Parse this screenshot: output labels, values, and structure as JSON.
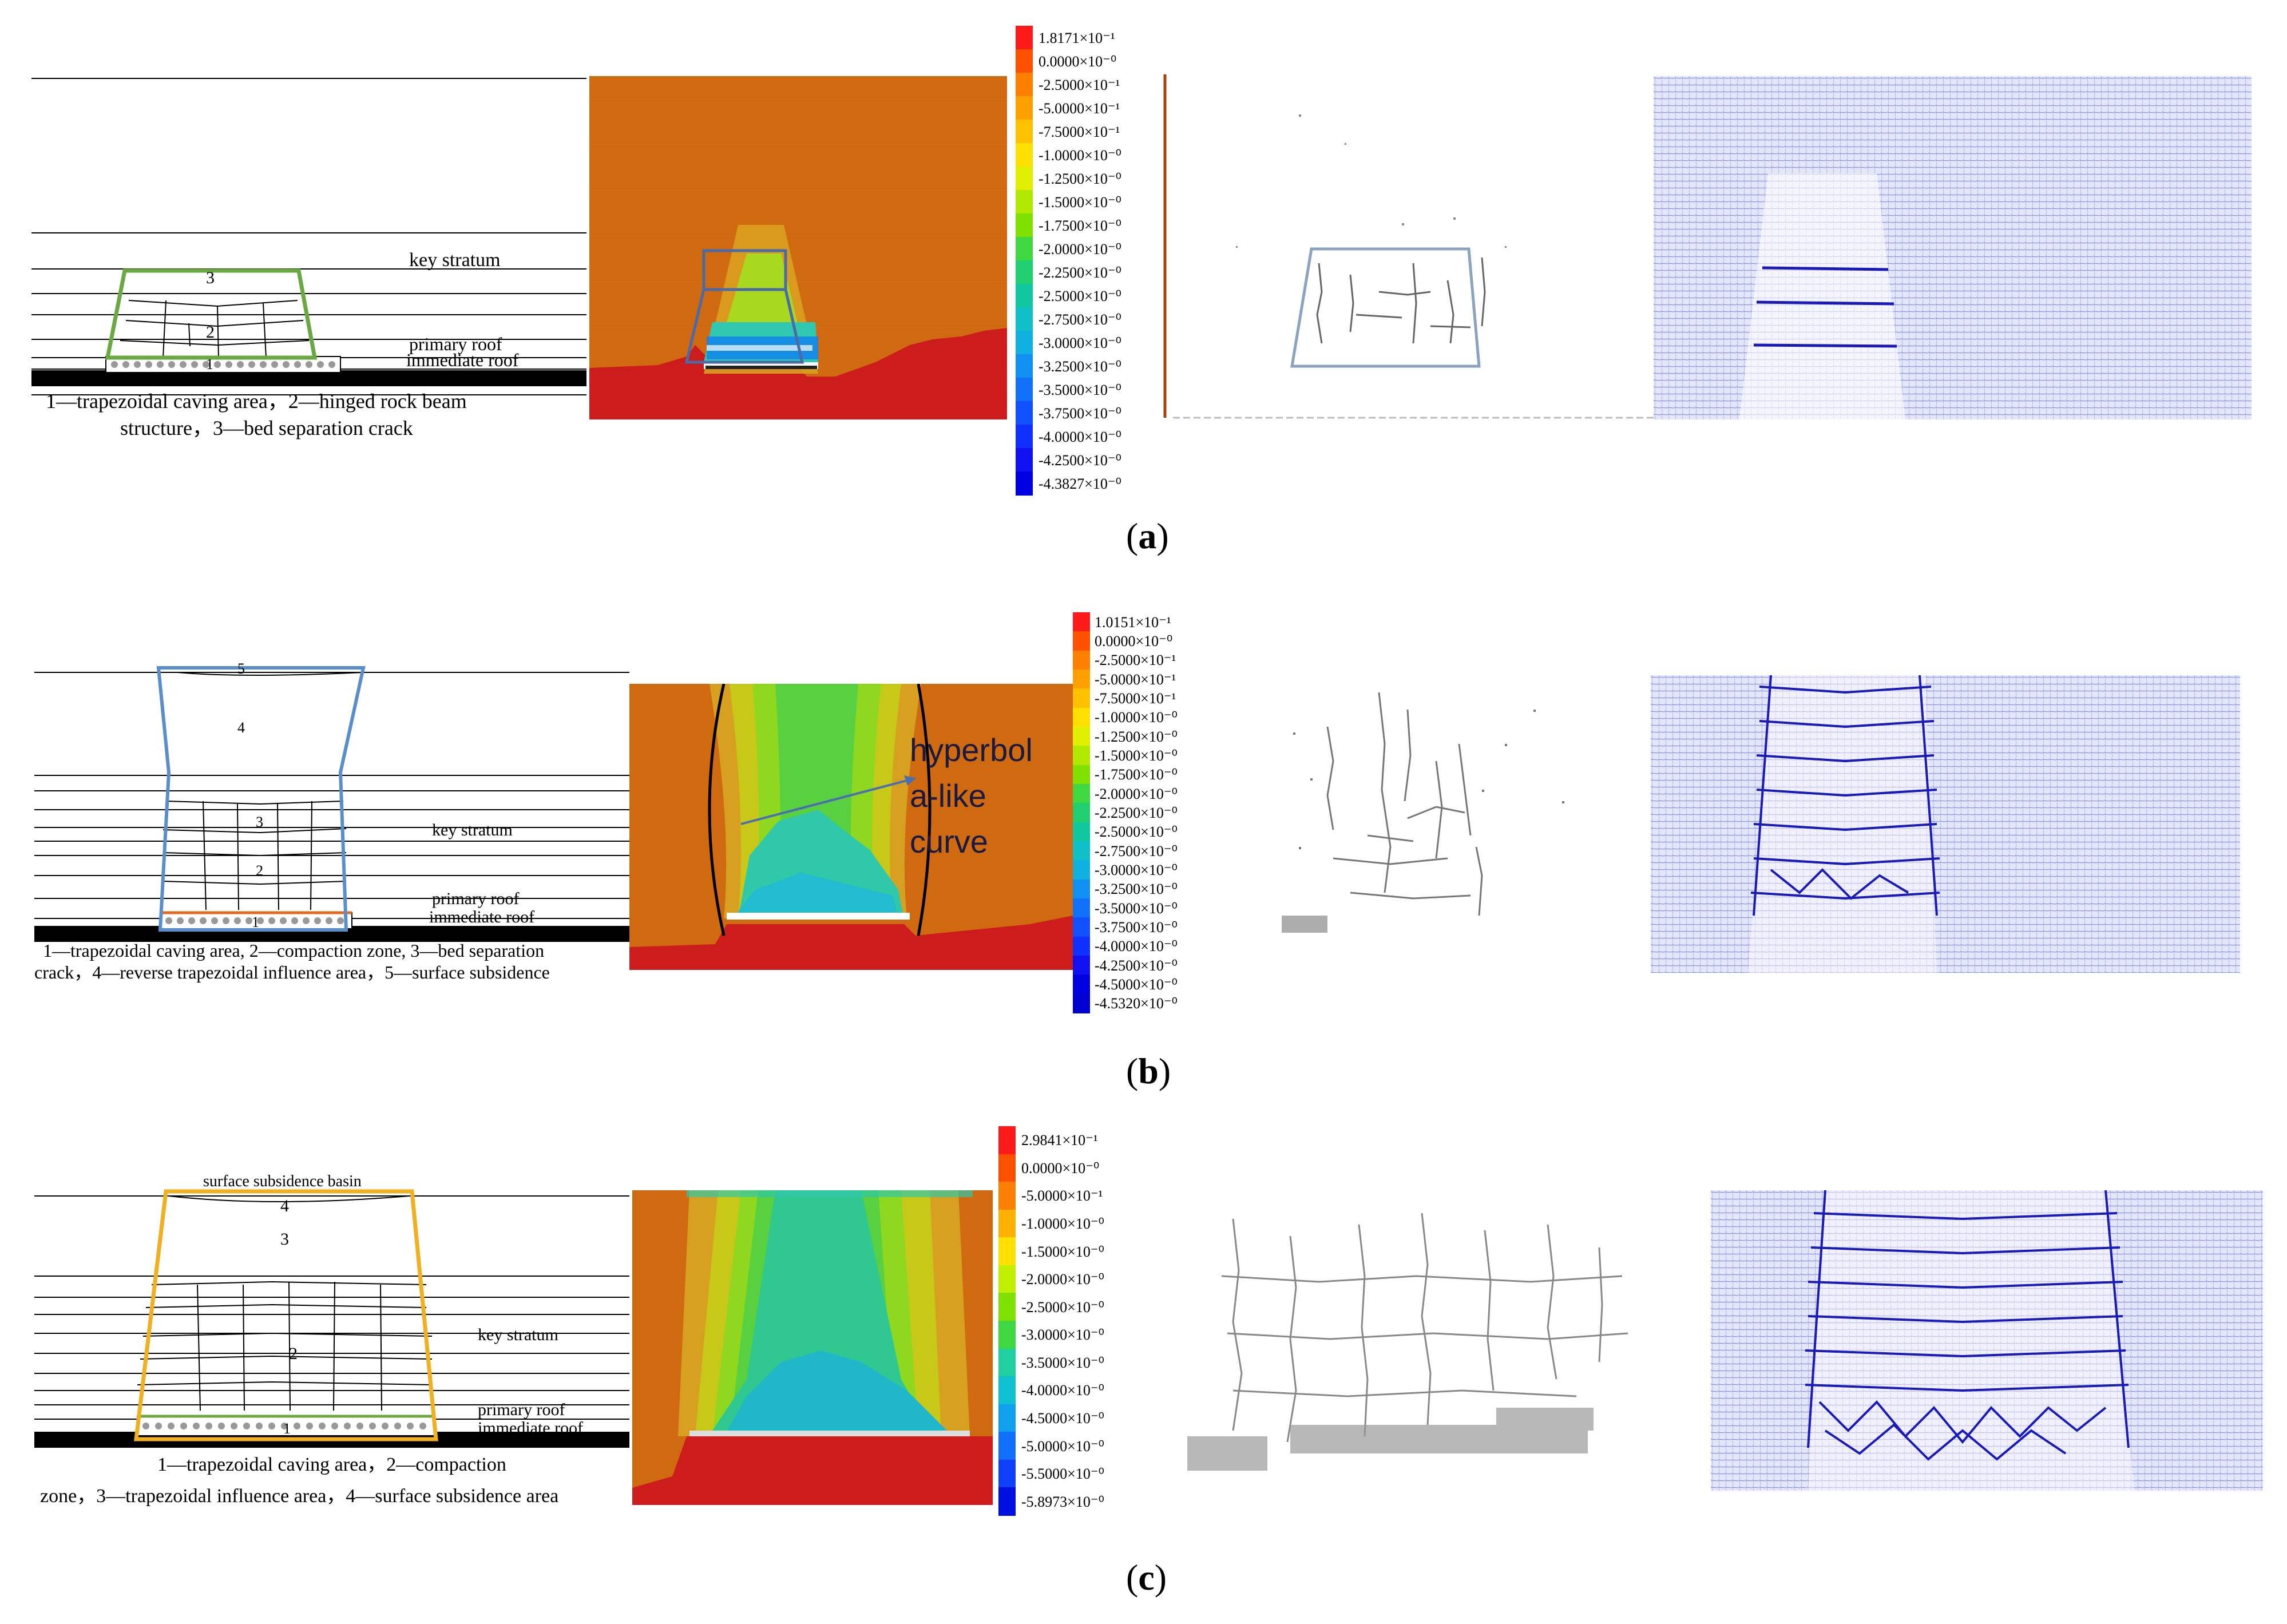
{
  "rows": [
    {
      "id": "a",
      "panel_label": "a",
      "schematic": {
        "labels": [
          "key stratum",
          "primary roof",
          "immediate roof"
        ],
        "zone_numbers": [
          "3",
          "2",
          "1"
        ],
        "caption_line1": "1—trapezoidal caving area，2—hinged rock beam",
        "caption_line2": "structure，3—bed separation crack"
      },
      "colorbar": [
        "1.8171×10⁻¹",
        "0.0000×10⁻⁰",
        "-2.5000×10⁻¹",
        "-5.0000×10⁻¹",
        "-7.5000×10⁻¹",
        "-1.0000×10⁻⁰",
        "-1.2500×10⁻⁰",
        "-1.5000×10⁻⁰",
        "-1.7500×10⁻⁰",
        "-2.0000×10⁻⁰",
        "-2.2500×10⁻⁰",
        "-2.5000×10⁻⁰",
        "-2.7500×10⁻⁰",
        "-3.0000×10⁻⁰",
        "-3.2500×10⁻⁰",
        "-3.5000×10⁻⁰",
        "-3.7500×10⁻⁰",
        "-4.0000×10⁻⁰",
        "-4.2500×10⁻⁰",
        "-4.3827×10⁻⁰"
      ],
      "colors": [
        "#ff1a1a",
        "#ff5000",
        "#ff8000",
        "#ffa000",
        "#ffc000",
        "#ffe000",
        "#e0f000",
        "#b0e800",
        "#80e000",
        "#40d840",
        "#20d070",
        "#10c8a0",
        "#10c0c8",
        "#10b0e0",
        "#1090f0",
        "#1070f8",
        "#1050ff",
        "#1030ff",
        "#1010f0",
        "#0000e0"
      ]
    },
    {
      "id": "b",
      "panel_label": "b",
      "schematic": {
        "labels": [
          "key stratum",
          "primary roof",
          "immediate roof"
        ],
        "zone_numbers": [
          "5",
          "4",
          "3",
          "2",
          "1"
        ],
        "caption_line1": "1—trapezoidal caving area, 2—compaction zone, 3—bed separation",
        "caption_line2": "crack，4—reverse trapezoidal influence area，5—surface subsidence"
      },
      "annotation": "hyperbola-like curve",
      "annotation_lines": [
        "hyperbol",
        "a-like",
        "curve"
      ],
      "colorbar": [
        "1.0151×10⁻¹",
        "0.0000×10⁻⁰",
        "-2.5000×10⁻¹",
        "-5.0000×10⁻¹",
        "-7.5000×10⁻¹",
        "-1.0000×10⁻⁰",
        "-1.2500×10⁻⁰",
        "-1.5000×10⁻⁰",
        "-1.7500×10⁻⁰",
        "-2.0000×10⁻⁰",
        "-2.2500×10⁻⁰",
        "-2.5000×10⁻⁰",
        "-2.7500×10⁻⁰",
        "-3.0000×10⁻⁰",
        "-3.2500×10⁻⁰",
        "-3.5000×10⁻⁰",
        "-3.7500×10⁻⁰",
        "-4.0000×10⁻⁰",
        "-4.2500×10⁻⁰",
        "-4.5000×10⁻⁰",
        "-4.5320×10⁻⁰"
      ],
      "colors": [
        "#ff1a1a",
        "#ff5000",
        "#ff8000",
        "#ffa000",
        "#ffc000",
        "#ffe000",
        "#e0f000",
        "#b0e800",
        "#80e000",
        "#40d840",
        "#20d070",
        "#10c8a0",
        "#10c0c8",
        "#10b0e0",
        "#1090f0",
        "#1070f8",
        "#1050ff",
        "#1030ff",
        "#1010f0",
        "#0000e0",
        "#0000d0"
      ]
    },
    {
      "id": "c",
      "panel_label": "c",
      "schematic": {
        "labels": [
          "surface subsidence basin",
          "key stratum",
          "primary roof",
          "immediate roof"
        ],
        "zone_numbers": [
          "4",
          "3",
          "2",
          "1"
        ],
        "caption_line1": "1—trapezoidal caving area，2—compaction",
        "caption_line2": "zone，3—trapezoidal influence area，4—surface subsidence area"
      },
      "colorbar": [
        "2.9841×10⁻¹",
        "0.0000×10⁻⁰",
        "-5.0000×10⁻¹",
        "-1.0000×10⁻⁰",
        "-1.5000×10⁻⁰",
        "-2.0000×10⁻⁰",
        "-2.5000×10⁻⁰",
        "-3.0000×10⁻⁰",
        "-3.5000×10⁻⁰",
        "-4.0000×10⁻⁰",
        "-4.5000×10⁻⁰",
        "-5.0000×10⁻⁰",
        "-5.5000×10⁻⁰",
        "-5.8973×10⁻⁰"
      ],
      "colors": [
        "#ff1a1a",
        "#ff5000",
        "#ff8000",
        "#ffb000",
        "#ffe000",
        "#c0f000",
        "#80e000",
        "#40d840",
        "#20d0a0",
        "#10c0d0",
        "#10a0f0",
        "#1070ff",
        "#1040ff",
        "#0010e0"
      ]
    }
  ]
}
